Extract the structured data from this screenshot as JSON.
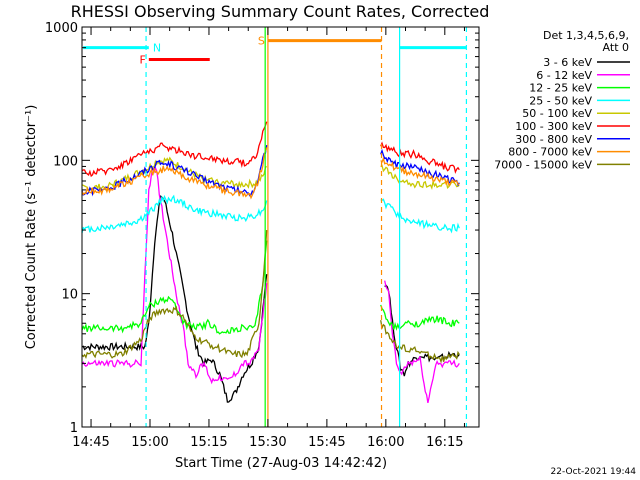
{
  "chart_data": {
    "type": "line",
    "title": "RHESSI Observing Summary Count Rates, Corrected",
    "xlabel": "Start Time (27-Aug-03 14:42:42)",
    "ylabel": "Corrected Count Rate (s⁻¹ detector⁻¹)",
    "x_unit": "minutes after 14:42:42",
    "xlim": [
      0,
      101
    ],
    "ylim": [
      1,
      1000
    ],
    "yscale": "log",
    "x_ticks": [
      {
        "value": 2.3,
        "label": "14:45"
      },
      {
        "value": 17.3,
        "label": "15:00"
      },
      {
        "value": 32.3,
        "label": "15:15"
      },
      {
        "value": 47.3,
        "label": "15:30"
      },
      {
        "value": 62.3,
        "label": "15:45"
      },
      {
        "value": 77.3,
        "label": "16:00"
      },
      {
        "value": 92.3,
        "label": "16:15"
      }
    ],
    "y_ticks": [
      {
        "value": 1,
        "label": "1"
      },
      {
        "value": 10,
        "label": "10"
      },
      {
        "value": 100,
        "label": "100"
      },
      {
        "value": 1000,
        "label": "1000"
      }
    ],
    "legend_header": [
      "Det 1,3,4,5,6,9,",
      "Att 0"
    ],
    "series": [
      {
        "name": "3 - 6 keV",
        "color": "#000000",
        "segments": [
          [
            [
              0,
              4
            ],
            [
              16,
              4
            ],
            [
              17,
              6
            ],
            [
              18.5,
              25
            ],
            [
              20,
              55
            ],
            [
              21,
              50
            ],
            [
              23,
              28
            ],
            [
              25,
              14
            ],
            [
              27,
              7
            ],
            [
              29,
              4
            ],
            [
              31,
              3
            ],
            [
              33,
              3.2
            ],
            [
              35,
              2.5
            ],
            [
              37,
              1.6
            ],
            [
              39,
              1.8
            ],
            [
              41,
              2.5
            ],
            [
              43,
              3
            ],
            [
              45,
              4
            ],
            [
              47,
              14
            ]
          ],
          [
            [
              77,
              12
            ],
            [
              78,
              11
            ],
            [
              79,
              6
            ],
            [
              80,
              4
            ],
            [
              81,
              2.8
            ],
            [
              82,
              2.5
            ],
            [
              83,
              3
            ],
            [
              86,
              3.5
            ],
            [
              90,
              3.2
            ],
            [
              94,
              3.5
            ],
            [
              96,
              3.5
            ]
          ]
        ]
      },
      {
        "name": "6 - 12 keV",
        "color": "#ff00ff",
        "segments": [
          [
            [
              0,
              3
            ],
            [
              15,
              3
            ],
            [
              17,
              60
            ],
            [
              18,
              90
            ],
            [
              19,
              80
            ],
            [
              20,
              50
            ],
            [
              22,
              22
            ],
            [
              24,
              10
            ],
            [
              26,
              5
            ],
            [
              27,
              3
            ],
            [
              29,
              2.5
            ],
            [
              31,
              3
            ],
            [
              33,
              2.2
            ],
            [
              35,
              2.4
            ],
            [
              37,
              2.2
            ],
            [
              39,
              2.5
            ],
            [
              41,
              3
            ],
            [
              43,
              3
            ],
            [
              45,
              4
            ],
            [
              47,
              12
            ]
          ],
          [
            [
              77,
              12
            ],
            [
              78,
              10
            ],
            [
              79,
              5
            ],
            [
              80,
              3
            ],
            [
              81,
              2.5
            ],
            [
              83,
              3
            ],
            [
              86,
              3.2
            ],
            [
              88,
              1.5
            ],
            [
              90,
              3
            ],
            [
              94,
              3
            ],
            [
              96,
              3
            ]
          ]
        ]
      },
      {
        "name": "12 - 25 keV",
        "color": "#00ff00",
        "segments": [
          [
            [
              0,
              5.5
            ],
            [
              10,
              5.5
            ],
            [
              15,
              6
            ],
            [
              17,
              8
            ],
            [
              20,
              9
            ],
            [
              23,
              9
            ],
            [
              26,
              6
            ],
            [
              29,
              5.5
            ],
            [
              32,
              6
            ],
            [
              36,
              5
            ],
            [
              40,
              5.5
            ],
            [
              44,
              5.5
            ],
            [
              46,
              12
            ],
            [
              47,
              25
            ]
          ],
          [
            [
              76,
              8
            ],
            [
              78,
              6
            ],
            [
              80,
              5.5
            ],
            [
              83,
              6
            ],
            [
              86,
              6
            ],
            [
              90,
              6.5
            ],
            [
              94,
              6
            ],
            [
              96,
              6
            ]
          ]
        ]
      },
      {
        "name": "25 - 50 keV",
        "color": "#00ffff",
        "segments": [
          [
            [
              0,
              30
            ],
            [
              8,
              32
            ],
            [
              14,
              35
            ],
            [
              17,
              40
            ],
            [
              20,
              50
            ],
            [
              23,
              52
            ],
            [
              26,
              47
            ],
            [
              29,
              42
            ],
            [
              33,
              40
            ],
            [
              37,
              38
            ],
            [
              41,
              37
            ],
            [
              44,
              39
            ],
            [
              46,
              42
            ],
            [
              47,
              50
            ]
          ],
          [
            [
              76,
              50
            ],
            [
              78,
              45
            ],
            [
              80,
              40
            ],
            [
              82,
              36
            ],
            [
              85,
              34
            ],
            [
              90,
              32
            ],
            [
              94,
              31
            ],
            [
              96,
              31
            ]
          ]
        ]
      },
      {
        "name": "50 - 100 keV",
        "color": "#c8c800",
        "segments": [
          [
            [
              0,
              62
            ],
            [
              6,
              63
            ],
            [
              10,
              70
            ],
            [
              14,
              80
            ],
            [
              17,
              88
            ],
            [
              19,
              98
            ],
            [
              22,
              100
            ],
            [
              25,
              90
            ],
            [
              28,
              80
            ],
            [
              31,
              72
            ],
            [
              35,
              68
            ],
            [
              41,
              66
            ],
            [
              44,
              67
            ],
            [
              46,
              75
            ],
            [
              47,
              90
            ]
          ],
          [
            [
              76,
              90
            ],
            [
              78,
              82
            ],
            [
              80,
              72
            ],
            [
              83,
              68
            ],
            [
              86,
              66
            ],
            [
              90,
              66
            ],
            [
              94,
              65
            ],
            [
              96,
              65
            ]
          ]
        ]
      },
      {
        "name": "100 - 300 keV",
        "color": "#ff0000",
        "segments": [
          [
            [
              0,
              80
            ],
            [
              5,
              82
            ],
            [
              10,
              92
            ],
            [
              14,
              108
            ],
            [
              18,
              120
            ],
            [
              20,
              128
            ],
            [
              23,
              122
            ],
            [
              26,
              115
            ],
            [
              29,
              108
            ],
            [
              33,
              104
            ],
            [
              37,
              99
            ],
            [
              40,
              97
            ],
            [
              42,
              96
            ],
            [
              44,
              105
            ],
            [
              45,
              125
            ],
            [
              46,
              160
            ],
            [
              47,
              195
            ]
          ],
          [
            [
              76,
              130
            ],
            [
              78,
              125
            ],
            [
              80,
              115
            ],
            [
              82,
              110
            ],
            [
              84,
              112
            ],
            [
              86,
              108
            ],
            [
              88,
              100
            ],
            [
              90,
              95
            ],
            [
              92,
              90
            ],
            [
              96,
              85
            ]
          ]
        ]
      },
      {
        "name": "300 - 800 keV",
        "color": "#0000ff",
        "segments": [
          [
            [
              0,
              58
            ],
            [
              6,
              60
            ],
            [
              10,
              68
            ],
            [
              14,
              78
            ],
            [
              18,
              90
            ],
            [
              20,
              96
            ],
            [
              23,
              92
            ],
            [
              26,
              85
            ],
            [
              29,
              76
            ],
            [
              33,
              68
            ],
            [
              37,
              62
            ],
            [
              41,
              58
            ],
            [
              43,
              57
            ],
            [
              44,
              62
            ],
            [
              45,
              75
            ],
            [
              46,
              100
            ],
            [
              47,
              130
            ]
          ],
          [
            [
              76,
              115
            ],
            [
              78,
              100
            ],
            [
              80,
              92
            ],
            [
              83,
              90
            ],
            [
              86,
              85
            ],
            [
              89,
              80
            ],
            [
              92,
              74
            ],
            [
              96,
              68
            ]
          ]
        ]
      },
      {
        "name": "800 - 7000 keV",
        "color": "#ff8c00",
        "segments": [
          [
            [
              0,
              58
            ],
            [
              6,
              60
            ],
            [
              10,
              66
            ],
            [
              14,
              72
            ],
            [
              18,
              82
            ],
            [
              21,
              86
            ],
            [
              24,
              80
            ],
            [
              27,
              74
            ],
            [
              30,
              68
            ],
            [
              34,
              62
            ],
            [
              38,
              58
            ],
            [
              41,
              56
            ],
            [
              43,
              55
            ],
            [
              44,
              60
            ],
            [
              45,
              72
            ],
            [
              46,
              95
            ],
            [
              47,
              125
            ]
          ],
          [
            [
              76,
              105
            ],
            [
              78,
              95
            ],
            [
              80,
              86
            ],
            [
              83,
              82
            ],
            [
              86,
              78
            ],
            [
              89,
              74
            ],
            [
              92,
              70
            ],
            [
              96,
              66
            ]
          ]
        ]
      },
      {
        "name": "7000 - 15000 keV",
        "color": "#808000",
        "segments": [
          [
            [
              0,
              3.5
            ],
            [
              10,
              3.5
            ],
            [
              15,
              4.5
            ],
            [
              17,
              6.5
            ],
            [
              20,
              7.5
            ],
            [
              24,
              7.5
            ],
            [
              26,
              6.5
            ],
            [
              28,
              5
            ],
            [
              30,
              4.5
            ],
            [
              34,
              4
            ],
            [
              38,
              3.5
            ],
            [
              42,
              3.5
            ],
            [
              45,
              6
            ],
            [
              46,
              12
            ],
            [
              47,
              30
            ]
          ],
          [
            [
              76,
              6
            ],
            [
              78,
              5
            ],
            [
              80,
              4
            ],
            [
              84,
              3.8
            ],
            [
              88,
              3.5
            ],
            [
              92,
              3.2
            ],
            [
              96,
              3.5
            ]
          ]
        ]
      }
    ],
    "vertical_lines": [
      {
        "x": 16.3,
        "color": "#00ffff",
        "style": "dashed"
      },
      {
        "x": 46.6,
        "color": "#00ff00",
        "style": "solid"
      },
      {
        "x": 47.3,
        "color": "#ff8c00",
        "style": "solid"
      },
      {
        "x": 76.2,
        "color": "#ff8c00",
        "style": "dashed"
      },
      {
        "x": 80.8,
        "color": "#00ffff",
        "style": "solid"
      },
      {
        "x": 97.8,
        "color": "#00ffff",
        "style": "dashed"
      }
    ],
    "bars": [
      {
        "label": "",
        "color": "#00ffff",
        "x0": 0.3,
        "x1": 16.3,
        "y": 700
      },
      {
        "label": "N",
        "color": "#00ffff",
        "x0": 16.3,
        "x1": 17.0,
        "y": 700
      },
      {
        "label": "F",
        "color": "#ff0000",
        "x0": 17.0,
        "x1": 32.5,
        "y": 570
      },
      {
        "label": "S",
        "color": "#ff8c00",
        "x0": 47.3,
        "x1": 76.2,
        "y": 790
      },
      {
        "label": "",
        "color": "#00ffff",
        "x0": 80.8,
        "x1": 97.8,
        "y": 700
      }
    ],
    "footer_date": "22-Oct-2021 19:44"
  }
}
